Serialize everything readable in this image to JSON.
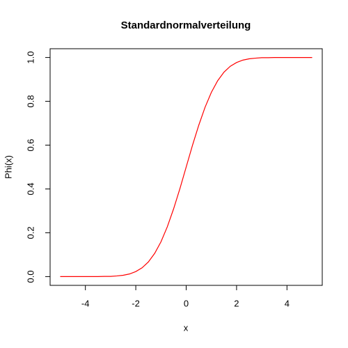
{
  "chart_data": {
    "type": "line",
    "title": "Standardnormalverteilung",
    "x_label": "x",
    "y_label": "Phi(x)",
    "color": "#ff0000",
    "x": [
      -5,
      -4.75,
      -4.5,
      -4.25,
      -4,
      -3.75,
      -3.5,
      -3.25,
      -3,
      -2.75,
      -2.5,
      -2.25,
      -2,
      -1.75,
      -1.5,
      -1.25,
      -1,
      -0.75,
      -0.5,
      -0.25,
      0,
      0.25,
      0.5,
      0.75,
      1,
      1.25,
      1.5,
      1.75,
      2,
      2.25,
      2.5,
      2.75,
      3,
      3.25,
      3.5,
      3.75,
      4,
      4.25,
      4.5,
      4.75,
      5
    ],
    "values": [
      0,
      0,
      0,
      0,
      0,
      0,
      0,
      0.001,
      0.001,
      0.003,
      0.006,
      0.012,
      0.023,
      0.04,
      0.067,
      0.106,
      0.159,
      0.227,
      0.309,
      0.401,
      0.5,
      0.599,
      0.691,
      0.773,
      0.841,
      0.894,
      0.933,
      0.96,
      0.977,
      0.988,
      0.994,
      0.997,
      0.999,
      0.999,
      1,
      1,
      1,
      1,
      1,
      1,
      1
    ],
    "xlim": [
      -5.4,
      5.4
    ],
    "ylim": [
      -0.04,
      1.04
    ],
    "xticks": [
      -4,
      -2,
      0,
      2,
      4
    ],
    "yticks": [
      {
        "value": 0,
        "label": "0.0"
      },
      0.2,
      0.4,
      0.6,
      0.8,
      {
        "value": 1,
        "label": "1.0"
      }
    ]
  }
}
